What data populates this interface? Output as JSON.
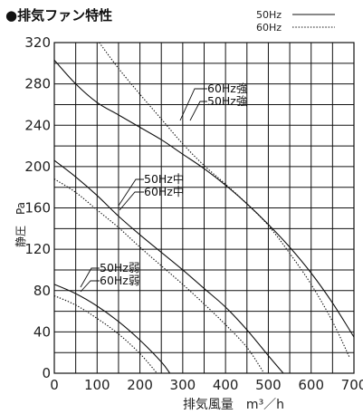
{
  "chart_data": {
    "type": "line",
    "title": "●排気ファン特性",
    "xlabel": "排気風量　m³／h",
    "ylabel": "静圧　Pa",
    "xlim": [
      0,
      700
    ],
    "ylim": [
      0,
      320
    ],
    "x_ticks": [
      "0",
      "100",
      "200",
      "300",
      "400",
      "500",
      "600",
      "700"
    ],
    "y_ticks": [
      "0",
      "40",
      "80",
      "120",
      "160",
      "200",
      "240",
      "280",
      "320"
    ],
    "x_tick_values": [
      0,
      100,
      200,
      300,
      400,
      500,
      600,
      700
    ],
    "y_tick_values": [
      0,
      40,
      80,
      120,
      160,
      200,
      240,
      280,
      320
    ],
    "x_grid_step": 50,
    "y_grid_step": 20,
    "grid": true,
    "legend_position": "top-right",
    "legend": [
      {
        "label": "50Hz",
        "line_style": "solid"
      },
      {
        "label": "60Hz",
        "line_style": "dotted"
      }
    ],
    "colors": {
      "line": "#111111",
      "grid": "#111111",
      "background": "#ffffff"
    },
    "series": [
      {
        "name": "50Hz強",
        "style": "solid",
        "x": [
          0,
          50,
          100,
          150,
          200,
          250,
          300,
          350,
          400,
          450,
          500,
          550,
          600,
          650,
          700
        ],
        "y": [
          303,
          280,
          262,
          250,
          238,
          226,
          212,
          198,
          182,
          164,
          144,
          122,
          97,
          68,
          35
        ]
      },
      {
        "name": "60Hz強",
        "style": "dotted",
        "x": [
          105,
          150,
          200,
          250,
          300,
          350,
          400,
          450,
          500,
          550,
          600,
          650,
          690
        ],
        "y": [
          320,
          295,
          270,
          246,
          222,
          201,
          183,
          164,
          143,
          116,
          86,
          50,
          15
        ]
      },
      {
        "name": "50Hz中",
        "style": "solid",
        "x": [
          0,
          50,
          100,
          150,
          200,
          250,
          300,
          350,
          400,
          450,
          500,
          535
        ],
        "y": [
          206,
          190,
          172,
          152,
          134,
          117,
          100,
          82,
          64,
          42,
          17,
          0
        ]
      },
      {
        "name": "60Hz中",
        "style": "dotted",
        "x": [
          0,
          50,
          100,
          150,
          200,
          250,
          300,
          350,
          400,
          450,
          490
        ],
        "y": [
          188,
          175,
          158,
          141,
          122,
          104,
          86,
          67,
          47,
          25,
          0
        ]
      },
      {
        "name": "50Hz弱",
        "style": "solid",
        "x": [
          0,
          50,
          100,
          150,
          200,
          250,
          270
        ],
        "y": [
          86,
          77,
          65,
          50,
          32,
          11,
          0
        ]
      },
      {
        "name": "60Hz弱",
        "style": "dotted",
        "x": [
          0,
          50,
          100,
          150,
          200,
          240
        ],
        "y": [
          75,
          66,
          53,
          38,
          19,
          0
        ]
      }
    ],
    "annotations": [
      {
        "text": "60Hz強",
        "points_to": "60Hz強"
      },
      {
        "text": "50Hz強",
        "points_to": "50Hz強"
      },
      {
        "text": "50Hz中",
        "points_to": "50Hz中"
      },
      {
        "text": "60Hz中",
        "points_to": "60Hz中"
      },
      {
        "text": "50Hz弱",
        "points_to": "50Hz弱"
      },
      {
        "text": "60Hz弱",
        "points_to": "60Hz弱"
      }
    ]
  }
}
